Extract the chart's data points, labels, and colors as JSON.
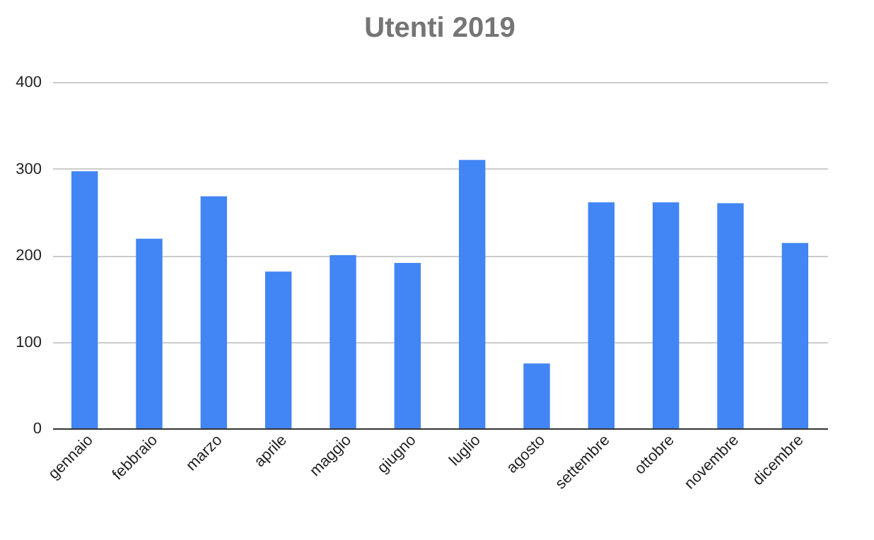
{
  "chart_data": {
    "type": "bar",
    "title": "Utenti 2019",
    "categories": [
      "gennaio",
      "febbraio",
      "marzo",
      "aprile",
      "maggio",
      "giugno",
      "luglio",
      "agosto",
      "settembre",
      "ottobre",
      "novembre",
      "dicembre"
    ],
    "values": [
      297,
      219,
      268,
      181,
      200,
      191,
      310,
      75,
      261,
      261,
      260,
      214
    ],
    "color": "#4285f4",
    "ylim": [
      0,
      400
    ],
    "yticks": [
      0,
      100,
      200,
      300,
      400
    ],
    "grid": "y"
  }
}
